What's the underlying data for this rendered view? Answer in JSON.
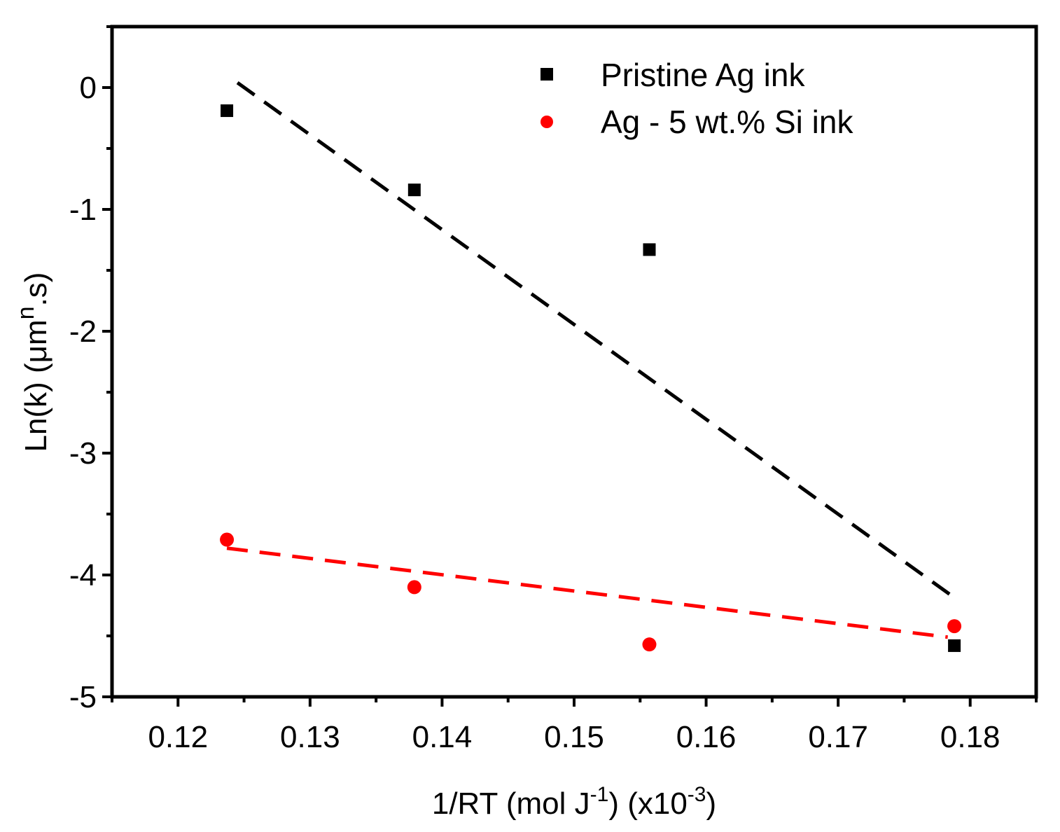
{
  "chart_data": {
    "type": "scatter",
    "title": "",
    "xlabel": {
      "main": "1/RT (mol J",
      "sup1": "-1",
      "mid": ") (x10",
      "sup2": "-3",
      "end": ")"
    },
    "ylabel": {
      "main": "Ln(k) (μm",
      "sup": "n",
      "end": ".s)"
    },
    "xlim": [
      0.115,
      0.185
    ],
    "ylim": [
      -5,
      0.5
    ],
    "xticks": [
      "0.12",
      "0.13",
      "0.14",
      "0.15",
      "0.16",
      "0.17",
      "0.18"
    ],
    "yticks": [
      "0",
      "-1",
      "-2",
      "-3",
      "-4",
      "-5"
    ],
    "legend_position": "top-right",
    "series": [
      {
        "name": "Pristine Ag ink",
        "marker": "square",
        "color": "#000000",
        "x": [
          0.1237,
          0.1379,
          0.1557,
          0.1788
        ],
        "y": [
          -0.19,
          -0.84,
          -1.33,
          -4.58
        ],
        "fit": {
          "x": [
            0.1245,
            0.1786
          ],
          "y": [
            0.04,
            -4.17
          ]
        }
      },
      {
        "name": "Ag - 5 wt.% Si ink",
        "marker": "circle",
        "color": "#ff0000",
        "x": [
          0.1237,
          0.1379,
          0.1557,
          0.1788
        ],
        "y": [
          -3.71,
          -4.1,
          -4.57,
          -4.42
        ],
        "fit": {
          "x": [
            0.1237,
            0.1783
          ],
          "y": [
            -3.78,
            -4.51
          ]
        }
      }
    ]
  }
}
